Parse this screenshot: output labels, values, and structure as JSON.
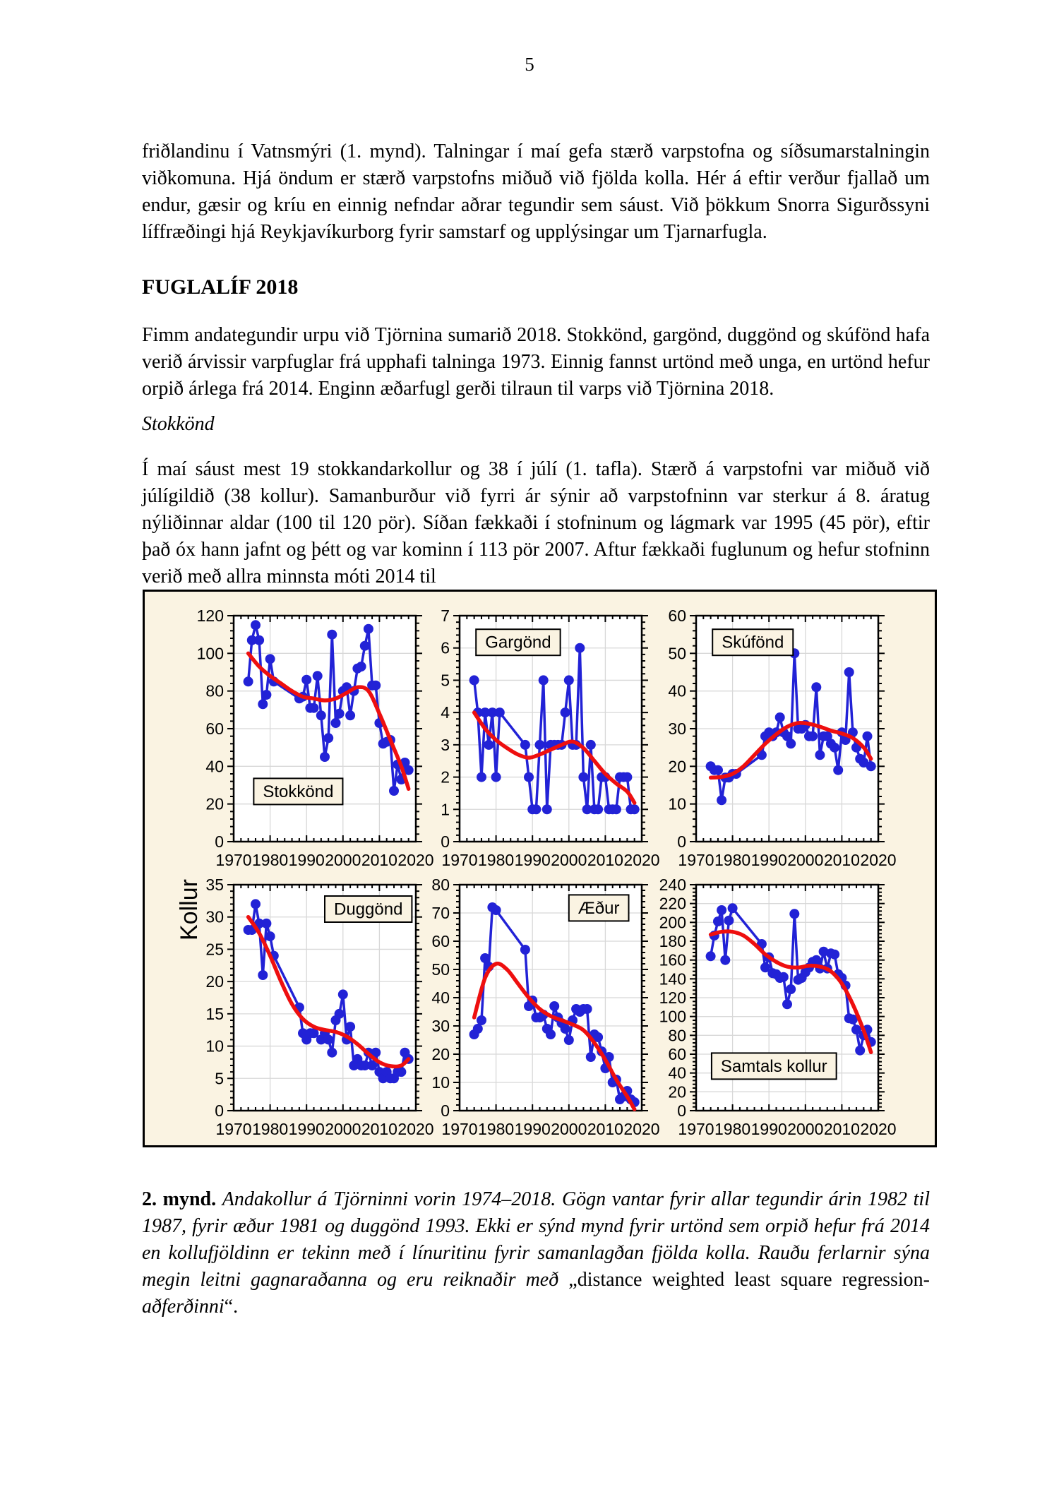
{
  "page": {
    "number": "5",
    "paragraph1": "friðlandinu í Vatnsmýri (1. mynd). Talningar í maí gefa stærð varpstofna og síðsumarstalningin viðkomuna. Hjá öndum er stærð varpstofns miðuð við fjölda kolla. Hér á eftir verður fjallað um endur, gæsir og kríu en einnig nefndar aðrar tegundir sem sáust. Við þökkum Snorra Sigurðssyni líffræðingi hjá Reykjavíkurborg fyrir samstarf og upplýsingar um Tjarnarfugla.",
    "heading": "FUGLALÍF 2018",
    "paragraph2": "Fimm andategundir urpu við Tjörnina sumarið 2018. Stokkönd, gargönd, duggönd og skúfönd hafa verið árvissir varpfuglar frá upphafi talninga 1973. Einnig fannst urtönd með unga, en urtönd hefur orpið árlega frá 2014. Enginn æðarfugl gerði tilraun til varps við Tjörnina 2018.",
    "subheading": "Stokkönd",
    "paragraph3": "Í maí sáust mest 19 stokkandarkollur og 38 í júlí (1. tafla). Stærð á varpstofni var miðuð við júlígildið (38 kollur). Samanburður við fyrri ár sýnir að varpstofninn var sterkur á 8. áratug nýliðinnar aldar (100 til 120 pör). Síðan fækkaði í stofninum og lágmark var 1995 (45 pör), eftir það óx hann jafnt og þétt og var kominn í 113 pör 2007. Aftur fækkaði fuglunum og hefur stofninn verið með allra minnsta móti 2014 til",
    "caption": {
      "label": "2. mynd.",
      "text_italic": "Andakollur á Tjörninni vorin 1974–2018. Gögn vantar fyrir allar tegundir árin 1982 til 1987, fyrir æður 1981 og duggönd 1993. Ekki er sýnd mynd fyrir urtönd sem orpið hefur frá 2014 en kollufjöldinn er tekinn með í línuritinu fyrir samanlagðan fjölda kolla. Rauðu ferlarnir sýna megin leitni gagnaraðanna og eru reiknaðir með",
      "method_prefix": "„distance weighted least square regression-",
      "method_italic": "aðferðinni",
      "method_suffix": "“."
    }
  },
  "figure": {
    "ylabel": "Kollur",
    "colors": {
      "points": "#2222d6",
      "trend": "#ee0f0f",
      "background": "#faf3e2",
      "plot_bg": "#ffffff",
      "grid": "#d8d8d8",
      "axis": "#000000"
    }
  },
  "chart_data": [
    {
      "type": "line",
      "title": "Stokkönd",
      "xlabel": "",
      "ylabel": "Kollur",
      "xlim": [
        1970,
        2020
      ],
      "xticks": [
        1970,
        1980,
        1990,
        2000,
        2010,
        2020
      ],
      "ylim": [
        0,
        120
      ],
      "ytick_step": 20,
      "grid": true,
      "x": [
        1974,
        1975,
        1976,
        1977,
        1978,
        1979,
        1980,
        1981,
        1988,
        1989,
        1990,
        1991,
        1992,
        1993,
        1994,
        1995,
        1996,
        1997,
        1998,
        1999,
        2000,
        2001,
        2002,
        2003,
        2004,
        2005,
        2006,
        2007,
        2008,
        2009,
        2010,
        2011,
        2012,
        2013,
        2014,
        2015,
        2016,
        2017,
        2018
      ],
      "values": [
        85,
        107,
        115,
        107,
        73,
        78,
        97,
        85,
        76,
        77,
        86,
        71,
        71,
        88,
        67,
        45,
        55,
        110,
        63,
        68,
        80,
        82,
        67,
        80,
        92,
        93,
        104,
        113,
        83,
        83,
        63,
        52,
        53,
        54,
        27,
        41,
        33,
        42,
        38
      ],
      "trend": [
        [
          1974,
          100
        ],
        [
          1977,
          93
        ],
        [
          1980,
          88
        ],
        [
          1983,
          84
        ],
        [
          1986,
          80
        ],
        [
          1989,
          77
        ],
        [
          1992,
          76
        ],
        [
          1995,
          75
        ],
        [
          1998,
          76
        ],
        [
          2001,
          79
        ],
        [
          2004,
          82
        ],
        [
          2007,
          80
        ],
        [
          2010,
          68
        ],
        [
          2013,
          54
        ],
        [
          2016,
          40
        ],
        [
          2018,
          28
        ]
      ],
      "label_box": {
        "x": 0.11,
        "y": 0.72
      }
    },
    {
      "type": "line",
      "title": "Gargönd",
      "xlabel": "",
      "ylabel": "Kollur",
      "xlim": [
        1970,
        2020
      ],
      "xticks": [
        1970,
        1980,
        1990,
        2000,
        2010,
        2020
      ],
      "ylim": [
        0,
        7
      ],
      "ytick_step": 1,
      "grid": true,
      "x": [
        1974,
        1975,
        1976,
        1977,
        1978,
        1979,
        1980,
        1981,
        1988,
        1989,
        1990,
        1991,
        1992,
        1993,
        1994,
        1995,
        1996,
        1997,
        1998,
        1999,
        2000,
        2001,
        2002,
        2003,
        2004,
        2005,
        2006,
        2007,
        2008,
        2009,
        2010,
        2011,
        2012,
        2013,
        2014,
        2015,
        2016,
        2017,
        2018
      ],
      "values": [
        5,
        4,
        2,
        4,
        3,
        4,
        2,
        4,
        3,
        2,
        1,
        1,
        3,
        5,
        1,
        3,
        3,
        3,
        3,
        4,
        5,
        3,
        3,
        6,
        2,
        1,
        3,
        1,
        1,
        2,
        2,
        1,
        1,
        1,
        2,
        2,
        2,
        1,
        1
      ],
      "trend": [
        [
          1974,
          4.0
        ],
        [
          1977,
          3.5
        ],
        [
          1980,
          3.15
        ],
        [
          1983,
          2.9
        ],
        [
          1986,
          2.7
        ],
        [
          1989,
          2.6
        ],
        [
          1992,
          2.7
        ],
        [
          1995,
          2.85
        ],
        [
          1998,
          3.0
        ],
        [
          2001,
          3.1
        ],
        [
          2004,
          2.9
        ],
        [
          2007,
          2.5
        ],
        [
          2010,
          2.1
        ],
        [
          2013,
          1.8
        ],
        [
          2016,
          1.55
        ],
        [
          2018,
          1.2
        ]
      ],
      "label_box": {
        "x": 0.09,
        "y": 0.06
      }
    },
    {
      "type": "line",
      "title": "Skúfönd",
      "xlabel": "",
      "ylabel": "Kollur",
      "xlim": [
        1970,
        2020
      ],
      "xticks": [
        1970,
        1980,
        1990,
        2000,
        2010,
        2020
      ],
      "ylim": [
        0,
        60
      ],
      "ytick_step": 10,
      "grid": true,
      "x": [
        1974,
        1975,
        1976,
        1977,
        1978,
        1979,
        1980,
        1981,
        1988,
        1989,
        1990,
        1991,
        1992,
        1993,
        1994,
        1995,
        1996,
        1997,
        1998,
        1999,
        2000,
        2001,
        2002,
        2003,
        2004,
        2005,
        2006,
        2007,
        2008,
        2009,
        2010,
        2011,
        2012,
        2013,
        2014,
        2015,
        2016,
        2017,
        2018
      ],
      "values": [
        20,
        19,
        19,
        11,
        17,
        17,
        18,
        18,
        23,
        28,
        29,
        28,
        29,
        33,
        29,
        28,
        26,
        50,
        30,
        30,
        31,
        28,
        28,
        41,
        23,
        28,
        28,
        26,
        25,
        19,
        29,
        27,
        45,
        29,
        25,
        22,
        21,
        28,
        20
      ],
      "trend": [
        [
          1974,
          17
        ],
        [
          1977,
          17.2
        ],
        [
          1980,
          18
        ],
        [
          1983,
          20
        ],
        [
          1986,
          23
        ],
        [
          1989,
          26
        ],
        [
          1992,
          28.5
        ],
        [
          1995,
          30.5
        ],
        [
          1998,
          31.5
        ],
        [
          2001,
          31.3
        ],
        [
          2004,
          30.5
        ],
        [
          2007,
          29.5
        ],
        [
          2010,
          28.7
        ],
        [
          2013,
          27.5
        ],
        [
          2016,
          25
        ],
        [
          2018,
          22
        ]
      ],
      "label_box": {
        "x": 0.09,
        "y": 0.06
      }
    },
    {
      "type": "line",
      "title": "Duggönd",
      "xlabel": "",
      "ylabel": "Kollur",
      "xlim": [
        1970,
        2020
      ],
      "xticks": [
        1970,
        1980,
        1990,
        2000,
        2010,
        2020
      ],
      "ylim": [
        0,
        35
      ],
      "ytick_step": 5,
      "grid": true,
      "x": [
        1974,
        1975,
        1976,
        1977,
        1978,
        1979,
        1980,
        1981,
        1988,
        1989,
        1990,
        1991,
        1992,
        1994,
        1995,
        1996,
        1997,
        1998,
        1999,
        2000,
        2001,
        2002,
        2003,
        2004,
        2005,
        2006,
        2007,
        2008,
        2009,
        2010,
        2011,
        2012,
        2013,
        2014,
        2015,
        2016,
        2017,
        2018
      ],
      "values": [
        28,
        28,
        32,
        29,
        21,
        29,
        27,
        24,
        16,
        12,
        11,
        12,
        12,
        11,
        12,
        11,
        9,
        14,
        15,
        18,
        11,
        13,
        7,
        8,
        7,
        7,
        9,
        7,
        9,
        6,
        5,
        6,
        5,
        5,
        6,
        6,
        9,
        8
      ],
      "trend": [
        [
          1974,
          30
        ],
        [
          1977,
          27.5
        ],
        [
          1980,
          24
        ],
        [
          1983,
          20
        ],
        [
          1986,
          16.5
        ],
        [
          1989,
          14.2
        ],
        [
          1992,
          13
        ],
        [
          1995,
          12.5
        ],
        [
          1998,
          12.2
        ],
        [
          2001,
          11.5
        ],
        [
          2004,
          10.3
        ],
        [
          2007,
          8.8
        ],
        [
          2010,
          7.5
        ],
        [
          2013,
          6.9
        ],
        [
          2016,
          7
        ],
        [
          2018,
          8
        ]
      ],
      "label_box": {
        "x": 0.5,
        "y": 0.05
      }
    },
    {
      "type": "line",
      "title": "Æður",
      "xlabel": "",
      "ylabel": "Kollur",
      "xlim": [
        1970,
        2020
      ],
      "xticks": [
        1970,
        1980,
        1990,
        2000,
        2010,
        2020
      ],
      "ylim": [
        0,
        80
      ],
      "ytick_step": 10,
      "grid": true,
      "x": [
        1974,
        1975,
        1976,
        1977,
        1978,
        1979,
        1980,
        1988,
        1989,
        1990,
        1991,
        1992,
        1993,
        1994,
        1995,
        1996,
        1997,
        1998,
        1999,
        2000,
        2001,
        2002,
        2003,
        2004,
        2005,
        2006,
        2007,
        2008,
        2009,
        2010,
        2011,
        2012,
        2013,
        2014,
        2015,
        2016,
        2017,
        2018
      ],
      "values": [
        27,
        29,
        32,
        54,
        51,
        72,
        71,
        57,
        37,
        39,
        33,
        33,
        34,
        29,
        27,
        37,
        33,
        31,
        29,
        25,
        32,
        36,
        35,
        36,
        36,
        19,
        27,
        26,
        21,
        15,
        19,
        10,
        11,
        4,
        5,
        7,
        4,
        3
      ],
      "trend": [
        [
          1974,
          33
        ],
        [
          1977,
          47
        ],
        [
          1980,
          52
        ],
        [
          1983,
          50
        ],
        [
          1986,
          45
        ],
        [
          1989,
          40
        ],
        [
          1992,
          36
        ],
        [
          1995,
          33.5
        ],
        [
          1998,
          32
        ],
        [
          2001,
          30.5
        ],
        [
          2004,
          28.5
        ],
        [
          2007,
          24
        ],
        [
          2010,
          18
        ],
        [
          2013,
          11
        ],
        [
          2016,
          5
        ],
        [
          2018,
          0.5
        ]
      ],
      "label_box": {
        "x": 0.6,
        "y": 0.045
      }
    },
    {
      "type": "line",
      "title": "Samtals kollur",
      "xlabel": "",
      "ylabel": "Kollur",
      "xlim": [
        1970,
        2020
      ],
      "xticks": [
        1970,
        1980,
        1990,
        2000,
        2010,
        2020
      ],
      "ylim": [
        0,
        240
      ],
      "ytick_step": 20,
      "grid": true,
      "x": [
        1974,
        1975,
        1976,
        1977,
        1978,
        1979,
        1980,
        1988,
        1989,
        1990,
        1991,
        1992,
        1993,
        1994,
        1995,
        1996,
        1997,
        1998,
        1999,
        2000,
        2001,
        2002,
        2003,
        2004,
        2005,
        2006,
        2007,
        2008,
        2009,
        2010,
        2011,
        2012,
        2013,
        2014,
        2015,
        2016,
        2017,
        2018
      ],
      "values": [
        164,
        186,
        201,
        213,
        160,
        202,
        215,
        177,
        152,
        163,
        146,
        145,
        141,
        142,
        113,
        129,
        209,
        139,
        141,
        147,
        152,
        158,
        160,
        151,
        169,
        151,
        167,
        166,
        145,
        141,
        133,
        98,
        97,
        86,
        64,
        80,
        86,
        73
      ],
      "trend": [
        [
          1974,
          187
        ],
        [
          1977,
          190
        ],
        [
          1980,
          190
        ],
        [
          1983,
          186
        ],
        [
          1986,
          177
        ],
        [
          1989,
          166
        ],
        [
          1992,
          158
        ],
        [
          1995,
          153
        ],
        [
          1998,
          152
        ],
        [
          2001,
          154
        ],
        [
          2004,
          153
        ],
        [
          2007,
          148
        ],
        [
          2010,
          135
        ],
        [
          2013,
          113
        ],
        [
          2016,
          85
        ],
        [
          2018,
          62
        ]
      ],
      "label_box": {
        "x": 0.085,
        "y": 0.745
      }
    }
  ]
}
